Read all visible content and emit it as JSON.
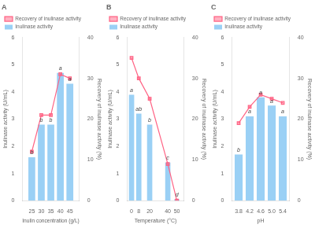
{
  "chart_data": [
    {
      "type": "bar",
      "title": "A",
      "x": [
        25,
        30,
        35,
        40,
        45
      ],
      "x_label": "Inulin concentration (g/L)",
      "y_label": "Inulinase activity (U/mL)",
      "y2_label": "Recovery of inulinase activity (%)",
      "xlim": [
        20,
        50
      ],
      "xticks": [
        25,
        30,
        35,
        40,
        45
      ],
      "ylim": [
        0,
        6
      ],
      "yticks": [
        0,
        1,
        2,
        3,
        4,
        5,
        6
      ],
      "y2lim": [
        0,
        40
      ],
      "y2ticks": [
        0,
        10,
        20,
        30,
        40
      ],
      "series": [
        {
          "name": "Inulinase activity",
          "type": "bar",
          "values": [
            1.6,
            2.8,
            2.8,
            4.7,
            4.3
          ]
        },
        {
          "name": "Recovery of inulinase activity",
          "type": "line",
          "axis": "y2",
          "marker": "square",
          "values": [
            12,
            21,
            21,
            31,
            30
          ]
        }
      ],
      "annotations": [
        {
          "x": 25,
          "y": 1.6,
          "text": "b"
        },
        {
          "x": 30,
          "y": 2.8,
          "text": "b"
        },
        {
          "x": 35,
          "y": 2.8,
          "text": "b"
        },
        {
          "x": 40,
          "y": 4.7,
          "text": "a"
        },
        {
          "x": 45,
          "y": 4.3,
          "text": "a"
        }
      ],
      "legend": "upper left",
      "grid": false
    },
    {
      "type": "bar",
      "title": "B",
      "x": [
        0,
        8,
        20,
        40,
        50
      ],
      "x_label": "Temperature (°C)",
      "y_label": "Inulinase activity (U/mL)",
      "y2_label": "Recovery of inulinase activity (%)",
      "xlim": [
        -5,
        58
      ],
      "xticks": [
        0,
        8,
        20,
        40,
        50
      ],
      "ylim": [
        0,
        6
      ],
      "yticks": [
        0,
        1,
        2,
        3,
        4,
        5,
        6
      ],
      "y2lim": [
        0,
        40
      ],
      "y2ticks": [
        0,
        10,
        20,
        30,
        40
      ],
      "series": [
        {
          "name": "Inulinase activity",
          "type": "bar",
          "values": [
            3.9,
            3.2,
            2.8,
            1.4,
            0.05
          ]
        },
        {
          "name": "Recovery of inulinase activity",
          "type": "line",
          "axis": "y2",
          "marker": "square",
          "values": [
            35,
            30,
            25,
            9,
            0
          ]
        }
      ],
      "annotations": [
        {
          "x": 0,
          "y": 3.9,
          "text": "a"
        },
        {
          "x": 8,
          "y": 3.2,
          "text": "ab"
        },
        {
          "x": 20,
          "y": 2.8,
          "text": "b"
        },
        {
          "x": 40,
          "y": 1.4,
          "text": "c"
        },
        {
          "x": 50,
          "y": 0.05,
          "text": "d"
        }
      ],
      "legend": "upper left",
      "grid": false
    },
    {
      "type": "bar",
      "title": "C",
      "x": [
        3.8,
        4.2,
        4.6,
        5.0,
        5.4
      ],
      "x_label": "pH",
      "y_label": "Inulinase activity (U/mL)",
      "y2_label": "Recovery of inulinase activity (%)",
      "xlim": [
        3.55,
        5.65
      ],
      "xticks": [
        3.8,
        4.2,
        4.6,
        {
          "value": 5.0,
          "label": "5.0"
        },
        5.4
      ],
      "ylim": [
        0,
        6
      ],
      "yticks": [
        0,
        1,
        2,
        3,
        4,
        5,
        6
      ],
      "y2lim": [
        0,
        40
      ],
      "y2ticks": [
        0,
        10,
        20,
        30,
        40
      ],
      "series": [
        {
          "name": "Inulinase activity",
          "type": "bar",
          "values": [
            1.7,
            3.1,
            3.8,
            3.5,
            3.1
          ]
        },
        {
          "name": "Recovery of inulinase activity",
          "type": "line",
          "axis": "y2",
          "marker": "square",
          "values": [
            19,
            23,
            26,
            25,
            24
          ]
        }
      ],
      "annotations": [
        {
          "x": 3.8,
          "y": 1.7,
          "text": "b"
        },
        {
          "x": 4.2,
          "y": 3.1,
          "text": "a"
        },
        {
          "x": 4.6,
          "y": 3.8,
          "text": "a"
        },
        {
          "x": 5.0,
          "y": 3.5,
          "text": "a"
        },
        {
          "x": 5.4,
          "y": 3.1,
          "text": "a"
        }
      ],
      "legend": "upper left",
      "grid": false
    }
  ]
}
